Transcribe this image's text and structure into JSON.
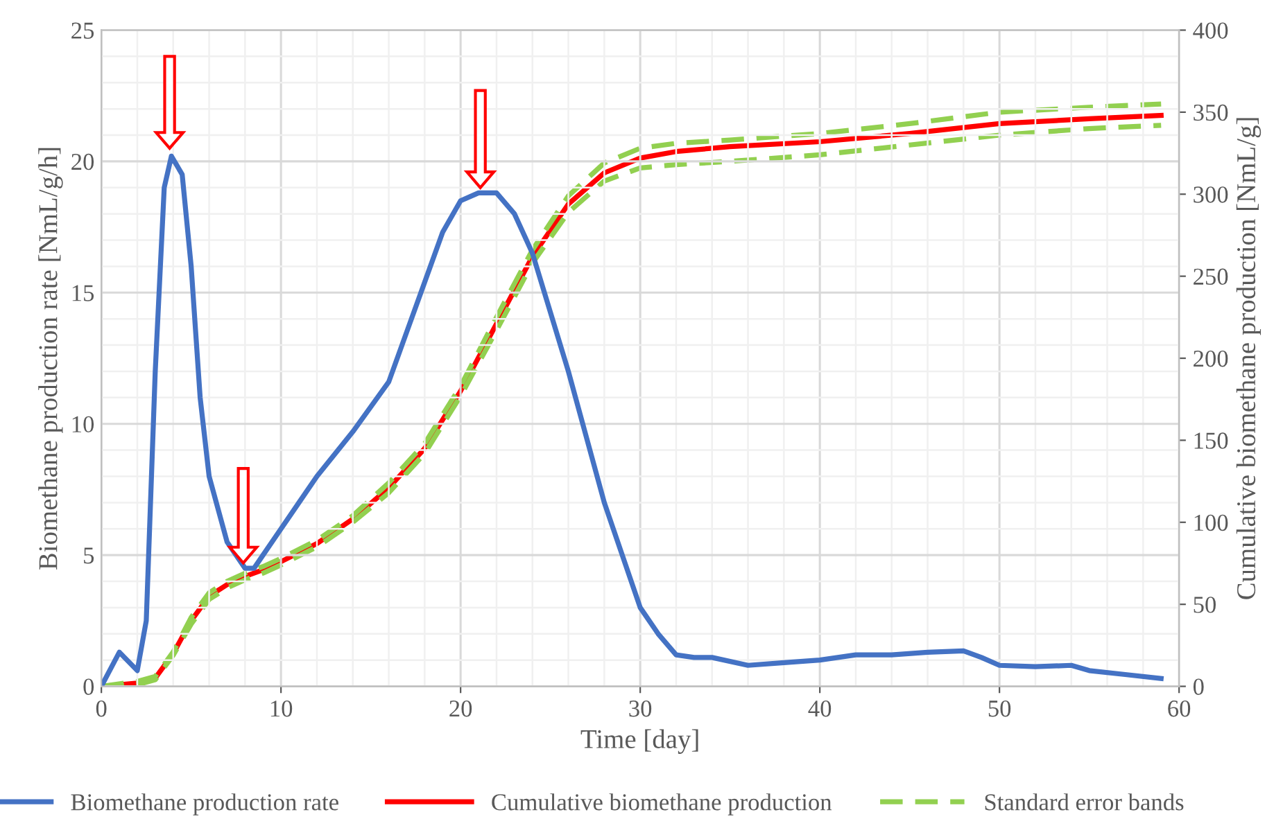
{
  "chart_data": {
    "type": "line",
    "xlabel": "Time [day]",
    "ylabel": "Biomethane production rate [NmL/g/h]",
    "y2label": "Cumulative biomethane production [NmL/g]",
    "xlim": [
      0,
      60
    ],
    "xticks": [
      0,
      10,
      20,
      30,
      40,
      50,
      60
    ],
    "ylim": [
      0,
      25
    ],
    "yticks": [
      0,
      5,
      10,
      15,
      20,
      25
    ],
    "y2lim": [
      0,
      400
    ],
    "y2ticks": [
      0,
      50,
      100,
      150,
      200,
      250,
      300,
      350,
      400
    ],
    "grid": true,
    "legend": "bottom",
    "line_style": "solid",
    "marker": "none",
    "series": [
      {
        "name": "Biomethane production rate",
        "color": "#4472c4",
        "x": [
          0,
          1,
          2,
          2.5,
          3,
          3.5,
          3.9,
          4.5,
          5,
          5.5,
          6,
          7,
          8,
          8.5,
          9,
          10,
          11,
          12,
          14,
          16,
          17,
          18,
          19,
          20,
          21,
          22,
          23,
          24,
          26,
          28,
          30,
          31,
          32,
          33,
          34,
          36,
          38,
          40,
          42,
          44,
          46,
          48,
          49,
          50,
          52,
          54,
          55,
          57,
          59
        ],
        "values": [
          0,
          1.3,
          0.6,
          2.5,
          12,
          19,
          20.2,
          19.5,
          16,
          11,
          8,
          5.5,
          4.5,
          4.5,
          5,
          6,
          7,
          8,
          9.7,
          11.6,
          13.5,
          15.4,
          17.3,
          18.5,
          18.8,
          18.8,
          18,
          16.5,
          12,
          7,
          3,
          2,
          1.2,
          1.1,
          1.1,
          0.8,
          0.9,
          1.0,
          1.2,
          1.2,
          1.3,
          1.35,
          1.1,
          0.8,
          0.75,
          0.8,
          0.6,
          0.45,
          0.3
        ]
      },
      {
        "name": "Cumulative biomethane production",
        "color": "#ff0000",
        "axis": "y2",
        "x": [
          0,
          2,
          3,
          4,
          5,
          6,
          7,
          8,
          9,
          10,
          12,
          14,
          16,
          18,
          20,
          22,
          24,
          26,
          28,
          30,
          32,
          35,
          40,
          45,
          50,
          55,
          59
        ],
        "values": [
          0,
          2,
          5,
          20,
          40,
          55,
          62,
          67,
          71,
          76,
          87,
          102,
          121,
          145,
          180,
          221,
          262,
          294,
          313,
          322,
          326,
          329,
          332,
          337,
          343,
          346,
          348
        ]
      },
      {
        "name": "Standard error bands",
        "color": "#92d050",
        "axis": "y2",
        "line_style": "dashed",
        "x": [
          0,
          2,
          3,
          4,
          5,
          6,
          7,
          8,
          9,
          10,
          12,
          14,
          16,
          18,
          20,
          22,
          24,
          26,
          28,
          30,
          32,
          35,
          40,
          45,
          50,
          55,
          59
        ],
        "values": [
          0,
          3,
          6,
          21,
          42,
          57,
          64,
          69,
          73,
          78,
          89,
          104,
          124,
          148,
          183,
          225,
          266,
          299,
          319,
          328,
          331,
          333,
          337,
          343,
          350,
          353,
          355
        ]
      },
      {
        "color": "#92d050",
        "axis": "y2",
        "line_style": "dashed",
        "x": [
          0,
          2,
          3,
          4,
          5,
          6,
          7,
          8,
          9,
          10,
          12,
          14,
          16,
          18,
          20,
          22,
          24,
          26,
          28,
          30,
          32,
          35,
          40,
          45,
          50,
          55,
          59
        ],
        "values": [
          0,
          1,
          4,
          19,
          38,
          53,
          60,
          65,
          69,
          74,
          85,
          100,
          118,
          142,
          177,
          217,
          258,
          289,
          308,
          316,
          318,
          320,
          324,
          330,
          336,
          340,
          342
        ]
      }
    ]
  }
}
